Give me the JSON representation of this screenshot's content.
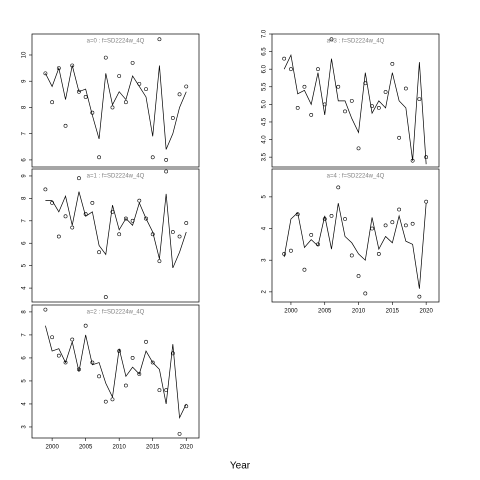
{
  "xlabel": "Year",
  "chart_data": [
    {
      "type": "line",
      "title": "a=0  :  f=SD2224w_4Q",
      "x": [
        1999,
        2000,
        2001,
        2002,
        2003,
        2004,
        2005,
        2006,
        2007,
        2008,
        2009,
        2010,
        2011,
        2012,
        2013,
        2014,
        2015,
        2016,
        2017,
        2018,
        2019,
        2020
      ],
      "series": [
        {
          "color": "#000000",
          "marker": "circle",
          "values": [
            9.3,
            8.2,
            9.5,
            7.3,
            9.6,
            8.6,
            8.4,
            7.8,
            6.1,
            9.9,
            8.0,
            9.2,
            8.2,
            9.7,
            8.9,
            8.7,
            6.1,
            10.6,
            6.0,
            7.6,
            8.5,
            8.8
          ]
        },
        {
          "color": "#000000",
          "marker": "none",
          "values": [
            9.3,
            8.8,
            9.5,
            8.3,
            9.6,
            8.6,
            8.7,
            7.7,
            6.8,
            9.3,
            8.1,
            8.6,
            8.3,
            9.2,
            8.8,
            8.4,
            6.9,
            9.6,
            6.4,
            7.0,
            8.0,
            8.6
          ]
        }
      ],
      "xlim": [
        1997.0,
        2021.9
      ],
      "ylim": [
        5.73,
        10.8
      ],
      "yticks": [
        6,
        7,
        8,
        9,
        10
      ]
    },
    {
      "type": "line",
      "title": "a=1  :  f=SD2224w_4Q",
      "x": [
        1999,
        2000,
        2001,
        2002,
        2003,
        2004,
        2005,
        2006,
        2007,
        2008,
        2009,
        2010,
        2011,
        2012,
        2013,
        2014,
        2015,
        2016,
        2017,
        2018,
        2019,
        2020
      ],
      "series": [
        {
          "color": "#000000",
          "marker": "circle",
          "values": [
            8.4,
            7.8,
            6.3,
            7.2,
            6.7,
            8.9,
            7.3,
            7.8,
            5.6,
            3.6,
            7.4,
            6.4,
            7.1,
            7.0,
            7.9,
            7.1,
            6.4,
            5.2,
            9.2,
            6.5,
            6.3,
            6.9
          ]
        },
        {
          "color": "#000000",
          "marker": "none",
          "values": [
            7.9,
            7.9,
            7.4,
            8.1,
            6.8,
            8.3,
            7.2,
            7.4,
            5.9,
            5.5,
            7.7,
            6.6,
            7.1,
            6.8,
            7.8,
            7.1,
            6.5,
            5.3,
            8.2,
            4.9,
            5.6,
            6.5
          ]
        }
      ],
      "xlim": [
        1997.0,
        2021.9
      ],
      "ylim": [
        3.38,
        9.31
      ],
      "yticks": [
        4,
        5,
        6,
        7,
        8,
        9
      ]
    },
    {
      "type": "line",
      "title": "a=2  :  f=SD2224w_4Q",
      "x": [
        1999,
        2000,
        2001,
        2002,
        2003,
        2004,
        2005,
        2006,
        2007,
        2008,
        2009,
        2010,
        2011,
        2012,
        2013,
        2014,
        2015,
        2016,
        2017,
        2018,
        2019,
        2020
      ],
      "series": [
        {
          "color": "#000000",
          "marker": "circle",
          "values": [
            8.1,
            6.9,
            6.1,
            5.8,
            6.8,
            5.5,
            7.4,
            5.8,
            5.2,
            4.1,
            4.2,
            6.3,
            4.8,
            6.0,
            5.3,
            6.7,
            5.8,
            4.6,
            4.6,
            6.2,
            2.7,
            3.9
          ]
        },
        {
          "color": "#000000",
          "marker": "none",
          "values": [
            7.4,
            6.3,
            6.4,
            5.8,
            6.7,
            5.4,
            7.0,
            5.7,
            5.8,
            4.9,
            4.3,
            6.4,
            5.2,
            5.6,
            5.3,
            6.3,
            5.8,
            5.5,
            4.0,
            6.6,
            3.4,
            4.0
          ]
        }
      ],
      "xlim": [
        1997.0,
        2021.9
      ],
      "ylim": [
        2.52,
        8.3
      ],
      "yticks": [
        3,
        4,
        5,
        6,
        7,
        8
      ],
      "xticks": [
        2000,
        2005,
        2010,
        2015,
        2020
      ]
    },
    {
      "type": "line",
      "title": "a=3  :  f=SD2224w_4Q",
      "x": [
        1999,
        2000,
        2001,
        2002,
        2003,
        2004,
        2005,
        2006,
        2007,
        2008,
        2009,
        2010,
        2011,
        2012,
        2013,
        2014,
        2015,
        2016,
        2017,
        2018,
        2019,
        2020
      ],
      "series": [
        {
          "color": "#000000",
          "marker": "circle",
          "values": [
            6.3,
            6.0,
            4.9,
            5.5,
            4.7,
            6.0,
            5.0,
            6.85,
            5.5,
            4.8,
            5.1,
            3.75,
            5.6,
            4.95,
            4.9,
            5.35,
            6.15,
            4.05,
            5.45,
            3.4,
            5.15,
            3.5
          ]
        },
        {
          "color": "#000000",
          "marker": "none",
          "values": [
            6.0,
            6.4,
            5.3,
            5.4,
            5.0,
            5.9,
            4.7,
            6.3,
            5.1,
            5.1,
            4.6,
            4.2,
            5.9,
            4.75,
            5.1,
            4.9,
            5.9,
            5.1,
            4.9,
            3.4,
            6.2,
            3.3
          ]
        }
      ],
      "xlim": [
        1997.2,
        2021.9
      ],
      "ylim": [
        3.22,
        7.0
      ],
      "yticks": [
        {
          "value": 3.5,
          "label": "3.5"
        },
        {
          "value": 4,
          "label": "4.0"
        },
        {
          "value": 4.5,
          "label": "4.5"
        },
        {
          "value": 5,
          "label": "5.0"
        },
        {
          "value": 5.5,
          "label": "5.5"
        },
        {
          "value": 6,
          "label": "6.0"
        },
        {
          "value": 6.5,
          "label": "6.5"
        },
        {
          "value": 7,
          "label": "7.0"
        }
      ]
    },
    {
      "type": "line",
      "title": "a=4  :  f=SD2224w_4Q",
      "x": [
        1999,
        2000,
        2001,
        2002,
        2003,
        2004,
        2005,
        2006,
        2007,
        2008,
        2009,
        2010,
        2011,
        2012,
        2013,
        2014,
        2015,
        2016,
        2017,
        2018,
        2019,
        2020
      ],
      "series": [
        {
          "color": "#000000",
          "marker": "circle",
          "values": [
            3.2,
            3.3,
            4.45,
            2.7,
            3.8,
            3.5,
            4.3,
            4.4,
            5.3,
            4.3,
            3.15,
            2.5,
            1.95,
            4.0,
            3.2,
            4.1,
            4.2,
            4.6,
            4.1,
            4.15,
            1.85,
            4.85
          ]
        },
        {
          "color": "#000000",
          "marker": "none",
          "values": [
            3.1,
            4.3,
            4.5,
            3.4,
            3.65,
            3.45,
            4.4,
            3.35,
            4.8,
            3.75,
            3.55,
            3.2,
            3.0,
            4.35,
            3.35,
            3.75,
            3.55,
            4.4,
            3.6,
            3.5,
            2.1,
            4.8
          ]
        }
      ],
      "xlim": [
        1997.2,
        2021.9
      ],
      "ylim": [
        1.68,
        5.88
      ],
      "yticks": [
        2,
        3,
        4,
        5
      ],
      "xticks": [
        2000,
        2005,
        2010,
        2015,
        2020
      ]
    }
  ]
}
